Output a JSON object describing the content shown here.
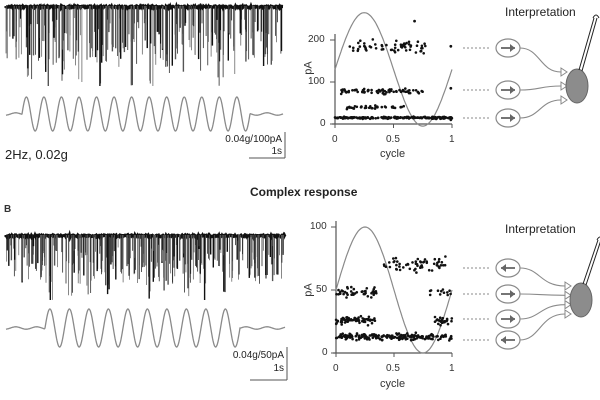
{
  "figure": {
    "section_title": "Complex response",
    "panel_b_label": "B"
  },
  "panel_a": {
    "condition_label": "2Hz, 0.02g",
    "scale_bar": {
      "vertical": "0.04g/100pA",
      "horizontal": "1s"
    },
    "stimulus_cycles": 13,
    "interpretation_title": "Interpretation",
    "inputs": [
      {
        "direction": "right"
      },
      {
        "direction": "right"
      },
      {
        "direction": "right"
      }
    ]
  },
  "panel_b": {
    "scale_bar": {
      "vertical": "0.04g/50pA",
      "horizontal": "1s"
    },
    "stimulus_cycles": 10,
    "interpretation_title": "Interpretation",
    "inputs": [
      {
        "direction": "left"
      },
      {
        "direction": "right"
      },
      {
        "direction": "right"
      },
      {
        "direction": "left"
      }
    ]
  },
  "colors": {
    "trace": "#111111",
    "stimulus": "#8a8a8a",
    "sine_overlay": "#8a8a8a",
    "points": "#111111",
    "neuron_fill": "#8c8c8c",
    "diagram_line": "#8a8a8a"
  },
  "chart_data": [
    {
      "type": "scatter",
      "title": "",
      "xlabel": "cycle",
      "ylabel": "pA",
      "xlim": [
        0,
        1
      ],
      "ylim": [
        0,
        260
      ],
      "xticks": [
        "0",
        "0.5",
        "1"
      ],
      "yticks": [
        "0",
        "100",
        "200"
      ],
      "overlay": "sine (stimulus phase), peak at cycle 0.25, trough at 0.75",
      "series": [
        {
          "name": "cluster ~185 pA",
          "center_pA": 185,
          "x_range": [
            0.1,
            0.8
          ],
          "n": 60
        },
        {
          "name": "cluster ~78 pA",
          "center_pA": 78,
          "x_range": [
            0.05,
            0.75
          ],
          "n": 80
        },
        {
          "name": "cluster ~15 pA",
          "center_pA": 15,
          "x_range": [
            0.0,
            1.0
          ],
          "n": 220
        },
        {
          "name": "sparse 20-60 pA",
          "center_pA": 40,
          "x_range": [
            0.1,
            0.6
          ],
          "n": 40
        }
      ],
      "outliers": [
        {
          "x": 0.68,
          "y": 245
        },
        {
          "x": 0.99,
          "y": 185
        },
        {
          "x": 0.99,
          "y": 85
        },
        {
          "x": 0.99,
          "y": 10
        }
      ]
    },
    {
      "type": "scatter",
      "title": "",
      "xlabel": "cycle",
      "ylabel": "pA",
      "xlim": [
        0,
        1
      ],
      "ylim": [
        0,
        100
      ],
      "xticks": [
        "0",
        "0.5",
        "1"
      ],
      "yticks": [
        "0",
        "50",
        "100"
      ],
      "overlay": "sine (stimulus phase), peak at cycle 0.25, trough at 0.75",
      "series": [
        {
          "name": "cluster ~70 pA",
          "center_pA": 70,
          "x_range": [
            0.4,
            0.95
          ],
          "n": 60
        },
        {
          "name": "cluster ~48 pA",
          "center_pA": 48,
          "x_range": [
            0.0,
            0.35
          ],
          "n": 45
        },
        {
          "name": "cluster ~26 pA",
          "center_pA": 26,
          "x_range": [
            0.0,
            0.35
          ],
          "n": 70
        },
        {
          "name": "cluster ~13 pA",
          "center_pA": 13,
          "x_range": [
            0.0,
            1.0
          ],
          "n": 200
        },
        {
          "name": "late ~48 pA",
          "center_pA": 48,
          "x_range": [
            0.8,
            1.0
          ],
          "n": 12
        },
        {
          "name": "late ~26 pA",
          "center_pA": 26,
          "x_range": [
            0.85,
            1.0
          ],
          "n": 25
        }
      ]
    }
  ]
}
